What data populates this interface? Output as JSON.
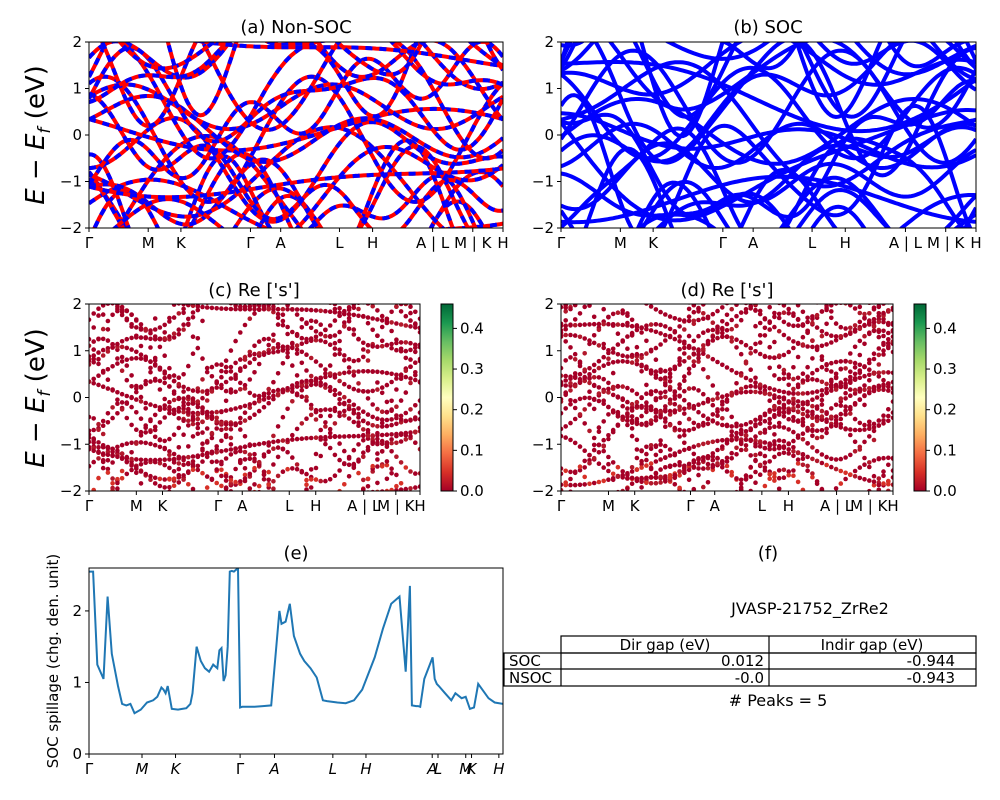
{
  "figure_id": "JVASP-21752_ZrRe2",
  "kpath_labels": [
    "Γ",
    "M",
    "K",
    "Γ",
    "A",
    "L",
    "H",
    "A | L",
    "M | K",
    "H"
  ],
  "spillage_kpath_labels": [
    "Γ",
    "M",
    "K",
    "Γ",
    "A",
    "L",
    "H",
    "A",
    "L",
    "M",
    "K",
    "H"
  ],
  "colorbar": {
    "ticks": [
      "0.0",
      "0.1",
      "0.2",
      "0.3",
      "0.4"
    ],
    "range": [
      0.0,
      0.46
    ],
    "colormap": "RdYlGn"
  },
  "colors": {
    "non_soc_solid": "#ff0000",
    "non_soc_dash": "#0000ff",
    "soc": "#0000ff",
    "spillage_line": "#1f77b4",
    "proj_low": "#a50026"
  },
  "chart_data": [
    {
      "type": "line",
      "title": "(a) Non-SOC",
      "ylabel": "E − E_f (eV)",
      "ylim": [
        -2,
        2
      ],
      "yticks": [
        "−2",
        "−1",
        "0",
        "1",
        "2"
      ],
      "xticks": [
        "Γ",
        "M",
        "K",
        "Γ",
        "A",
        "L",
        "H",
        "A | L",
        "M | K",
        "H"
      ],
      "series_style": "red solid bands overlaid by blue dashed bands"
    },
    {
      "type": "line",
      "title": "(b) SOC",
      "ylim": [
        -2,
        2
      ],
      "yticks": [
        "−2",
        "−1",
        "0",
        "1",
        "2"
      ],
      "xticks": [
        "Γ",
        "M",
        "K",
        "Γ",
        "A",
        "L",
        "H",
        "A | L",
        "M | K",
        "H"
      ],
      "series_style": "blue solid bands"
    },
    {
      "type": "scatter",
      "title": "(c)  Re ['s']",
      "ylabel": "E − E_f (eV)",
      "ylim": [
        -2,
        2
      ],
      "yticks": [
        "−2",
        "−1",
        "0",
        "1",
        "2"
      ],
      "xticks": [
        "Γ",
        "M",
        "K",
        "Γ",
        "A",
        "L",
        "H",
        "A | L",
        "M | K",
        "H"
      ],
      "color_scale": [
        0.0,
        0.46
      ]
    },
    {
      "type": "scatter",
      "title": "(d) Re ['s']",
      "ylim": [
        -2,
        2
      ],
      "yticks": [
        "−2",
        "−1",
        "0",
        "1",
        "2"
      ],
      "xticks": [
        "Γ",
        "M",
        "K",
        "Γ",
        "A",
        "L",
        "H",
        "A | L",
        "M | K",
        "H"
      ],
      "color_scale": [
        0.0,
        0.46
      ]
    },
    {
      "type": "line",
      "title": "(e)",
      "ylabel": "SOC spillage (chg. den. unit)",
      "ylim": [
        0,
        2.6
      ],
      "yticks": [
        "0",
        "1",
        "2"
      ],
      "xticks": [
        "Γ",
        "M",
        "K",
        "Γ",
        "A",
        "L",
        "H",
        "A",
        "L",
        "M",
        "K",
        "H"
      ],
      "xlim": [
        0,
        1
      ],
      "x": [
        0.0,
        0.01,
        0.02,
        0.035,
        0.045,
        0.055,
        0.07,
        0.08,
        0.09,
        0.1,
        0.11,
        0.125,
        0.14,
        0.155,
        0.165,
        0.175,
        0.18,
        0.185,
        0.19,
        0.2,
        0.215,
        0.225,
        0.235,
        0.245,
        0.25,
        0.26,
        0.27,
        0.28,
        0.29,
        0.3,
        0.31,
        0.315,
        0.32,
        0.325,
        0.33,
        0.335,
        0.34,
        0.345,
        0.35,
        0.36,
        0.365,
        0.37,
        0.38,
        0.39,
        0.4,
        0.42,
        0.44,
        0.46,
        0.465,
        0.475,
        0.485,
        0.495,
        0.51,
        0.52,
        0.535,
        0.55,
        0.565,
        0.575,
        0.6,
        0.62,
        0.64,
        0.66,
        0.69,
        0.71,
        0.73,
        0.75,
        0.765,
        0.775,
        0.78,
        0.79,
        0.795,
        0.8,
        0.81,
        0.83,
        0.835,
        0.84,
        0.845,
        0.86,
        0.875,
        0.885,
        0.9,
        0.91,
        0.92,
        0.93,
        0.94,
        0.95,
        0.965,
        0.98,
        1.0
      ],
      "values": [
        2.55,
        2.55,
        1.25,
        1.05,
        2.2,
        1.4,
        0.95,
        0.7,
        0.68,
        0.7,
        0.57,
        0.62,
        0.72,
        0.75,
        0.8,
        0.93,
        0.9,
        0.85,
        0.95,
        0.63,
        0.62,
        0.63,
        0.64,
        0.7,
        0.85,
        1.5,
        1.3,
        1.2,
        1.15,
        1.25,
        1.2,
        1.45,
        1.48,
        1.02,
        1.1,
        1.5,
        2.55,
        2.56,
        2.55,
        2.6,
        0.65,
        0.66,
        0.66,
        0.66,
        0.66,
        0.67,
        0.68,
        2.0,
        1.82,
        1.85,
        2.1,
        1.65,
        1.4,
        1.3,
        1.2,
        1.07,
        0.75,
        0.74,
        0.72,
        0.71,
        0.75,
        0.9,
        1.35,
        1.75,
        2.1,
        2.2,
        1.15,
        2.35,
        0.68,
        0.67,
        0.67,
        0.66,
        1.05,
        1.35,
        1.05,
        0.98,
        0.95,
        0.85,
        0.75,
        0.85,
        0.78,
        0.8,
        0.63,
        0.65,
        0.98,
        0.9,
        0.78,
        0.72,
        0.7
      ]
    },
    {
      "type": "table",
      "title": "(f)",
      "heading": "JVASP-21752_ZrRe2",
      "columns": [
        "",
        "Dir gap (eV)",
        "Indir gap (eV)"
      ],
      "rows": [
        [
          "SOC",
          "0.012",
          "-0.944"
        ],
        [
          "NSOC",
          "-0.0",
          "-0.943"
        ]
      ],
      "footer": "# Peaks = 5"
    }
  ]
}
